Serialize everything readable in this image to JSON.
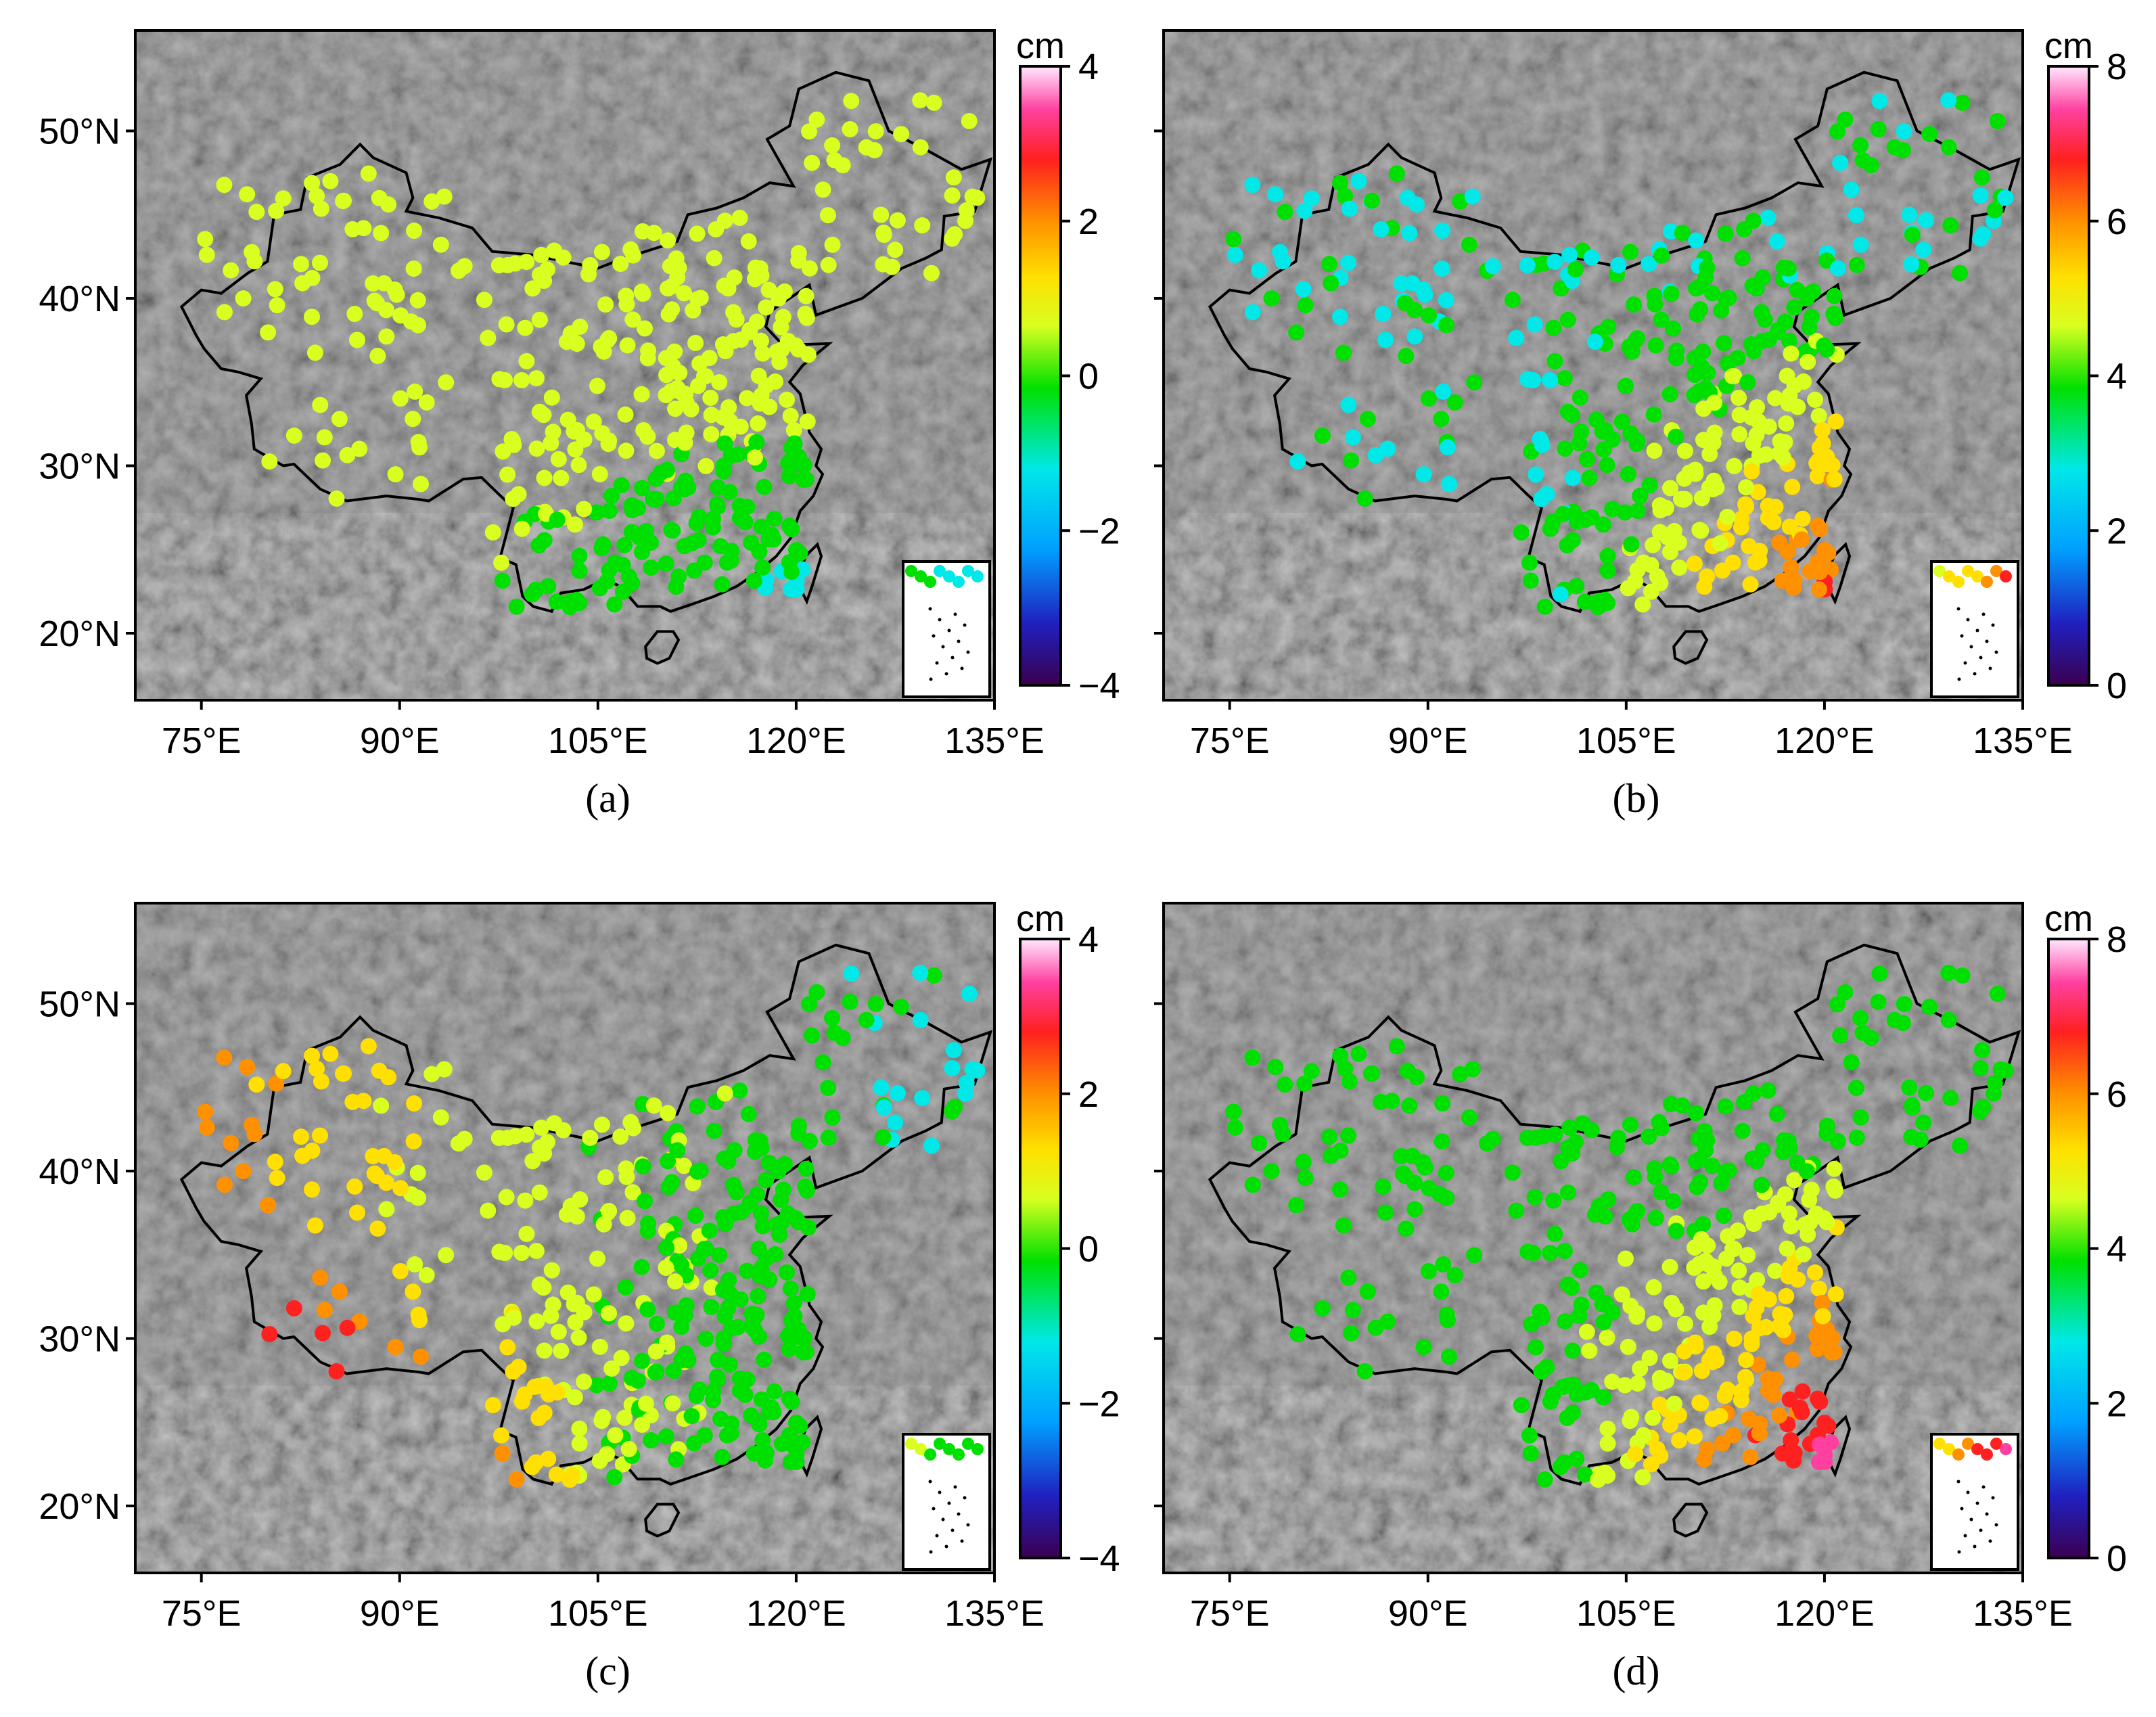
{
  "figure": {
    "panels": [
      {
        "caption": "(a)",
        "colorbar": {
          "unit": "cm",
          "min": -4,
          "max": 4,
          "ticks": [
            "4",
            "2",
            "0",
            "−2",
            "−4"
          ]
        },
        "x_ticks": [
          "75°E",
          "90°E",
          "105°E",
          "120°E",
          "135°E"
        ],
        "y_ticks": [
          "50°N",
          "40°N",
          "30°N",
          "20°N"
        ]
      },
      {
        "caption": "(b)",
        "colorbar": {
          "unit": "cm",
          "min": 0,
          "max": 8,
          "ticks": [
            "8",
            "6",
            "4",
            "2",
            "0"
          ]
        },
        "x_ticks": [
          "75°E",
          "90°E",
          "105°E",
          "120°E",
          "135°E"
        ],
        "y_ticks": []
      },
      {
        "caption": "(c)",
        "colorbar": {
          "unit": "cm",
          "min": -4,
          "max": 4,
          "ticks": [
            "4",
            "2",
            "0",
            "−2",
            "−4"
          ]
        },
        "x_ticks": [
          "75°E",
          "90°E",
          "105°E",
          "120°E",
          "135°E"
        ],
        "y_ticks": [
          "50°N",
          "40°N",
          "30°N",
          "20°N"
        ]
      },
      {
        "caption": "(d)",
        "colorbar": {
          "unit": "cm",
          "min": 0,
          "max": 8,
          "ticks": [
            "8",
            "6",
            "4",
            "2",
            "0"
          ]
        },
        "x_ticks": [
          "75°E",
          "90°E",
          "105°E",
          "120°E",
          "135°E"
        ],
        "y_ticks": []
      }
    ],
    "colormap": [
      "#3b0050",
      "#2020c0",
      "#00a0ff",
      "#00e8e8",
      "#00e000",
      "#d8ff20",
      "#ffe000",
      "#ff9000",
      "#ff2020",
      "#ff40a0",
      "#ffc0ff"
    ]
  }
}
